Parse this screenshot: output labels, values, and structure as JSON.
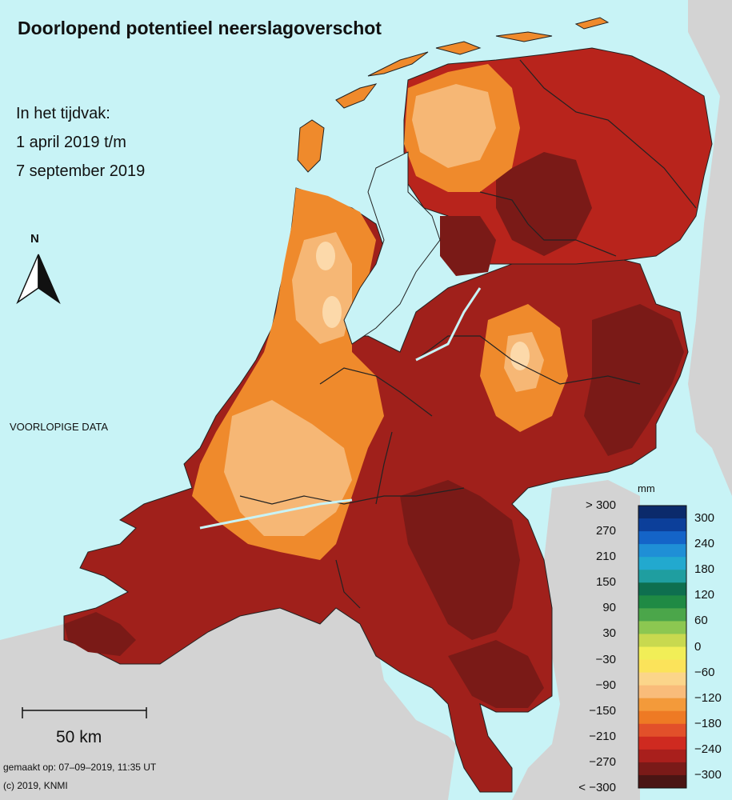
{
  "title": "Doorlopend potentieel neerslagoverschot",
  "period": {
    "line1": "In het tijdvak:",
    "line2": "1 april 2019 t/m",
    "line3": "7 september 2019"
  },
  "preliminary_label": "VOORLOPIGE DATA",
  "north_label": "N",
  "scale_bar_label": "50 km",
  "made_on": "gemaakt op: 07–09–2019, 11:35 UT",
  "copyright": "(c) 2019, KNMI",
  "legend": {
    "unit": "mm",
    "left_ticks": [
      "> 300",
      "270",
      "210",
      "150",
      "90",
      "30",
      "−30",
      "−90",
      "−150",
      "−210",
      "−270",
      "< −300"
    ],
    "right_ticks": [
      "300",
      "240",
      "180",
      "120",
      "60",
      "0",
      "−60",
      "−120",
      "−180",
      "−240",
      "−300"
    ],
    "colors": [
      "#0b2a6b",
      "#0c3f9a",
      "#1464c8",
      "#1f8fd6",
      "#22a9cf",
      "#1f9ea0",
      "#0e6f4f",
      "#1f8a44",
      "#4ba64a",
      "#8cc751",
      "#c8d94f",
      "#f1ee57",
      "#fbe35a",
      "#fbd58a",
      "#f9bc7a",
      "#f39a3a",
      "#ee7a24",
      "#e2502a",
      "#cf2a20",
      "#a91f1c",
      "#7a1a18",
      "#4a1514"
    ]
  },
  "colors": {
    "sea": "#c8f3f6",
    "neighbour_land": "#d3d3d3",
    "light_orange": "#f6b775",
    "orange": "#ef8a2c",
    "red": "#d8351d",
    "dark_red": "#7d1c17"
  }
}
